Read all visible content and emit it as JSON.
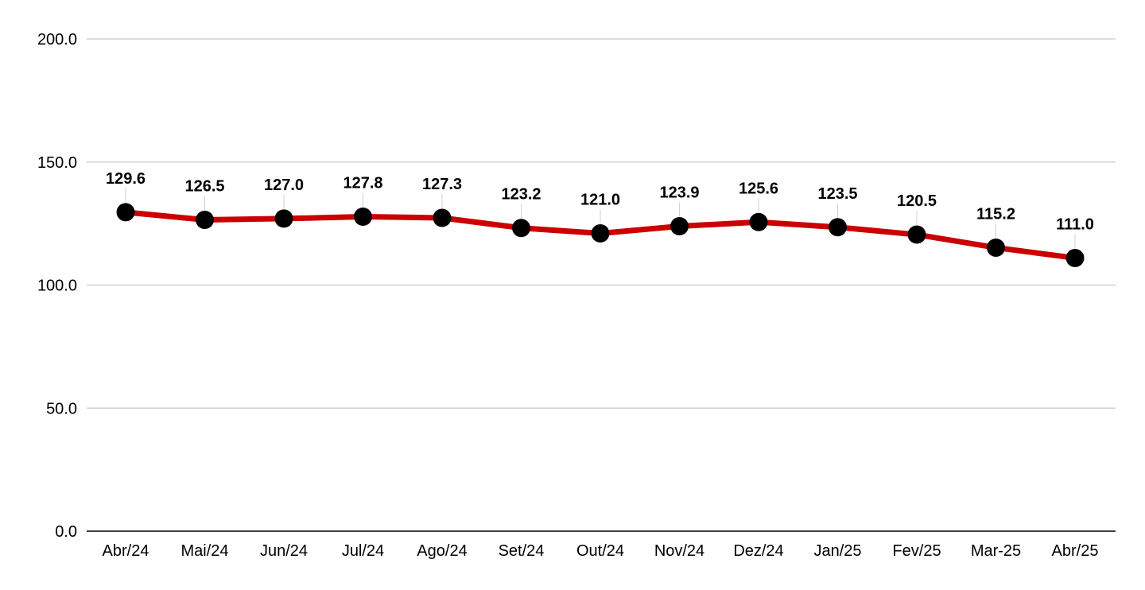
{
  "chart_data": {
    "type": "line",
    "title": "",
    "xlabel": "",
    "ylabel": "",
    "categories": [
      "Abr/24",
      "Mai/24",
      "Jun/24",
      "Jul/24",
      "Ago/24",
      "Set/24",
      "Out/24",
      "Nov/24",
      "Dez/24",
      "Jan/25",
      "Fev/25",
      "Mar-25",
      "Abr/25"
    ],
    "series": [
      {
        "values": [
          129.6,
          126.5,
          127.0,
          127.8,
          127.3,
          123.2,
          121.0,
          123.9,
          125.6,
          123.5,
          120.5,
          115.2,
          111.0
        ],
        "value_labels": [
          "129.6",
          "126.5",
          "127.0",
          "127.8",
          "127.3",
          "123.2",
          "121.0",
          "123.9",
          "125.6",
          "123.5",
          "120.5",
          "115.2",
          "111.0"
        ],
        "line_color": "#cc0000",
        "marker_color": "#000000"
      }
    ],
    "ylim": [
      0,
      200
    ],
    "yticks": [
      "0.0",
      "50.0",
      "100.0",
      "150.0",
      "200.0"
    ],
    "ytick_values": [
      0,
      50,
      100,
      150,
      200
    ],
    "grid": true,
    "legend": "none"
  }
}
